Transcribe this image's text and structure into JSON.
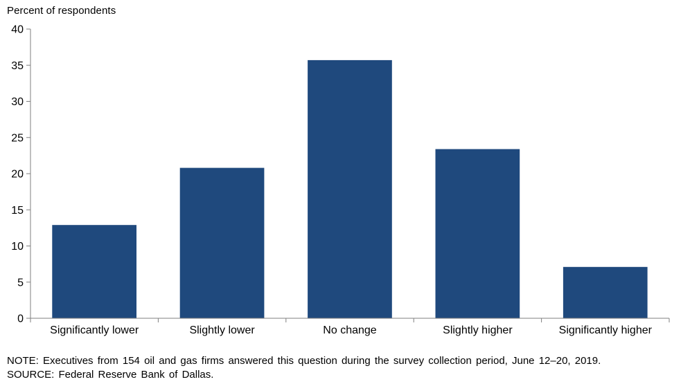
{
  "chart_data": {
    "type": "bar",
    "ylabel": "Percent of respondents",
    "xlabel": "",
    "categories": [
      "Significantly lower",
      "Slightly lower",
      "No change",
      "Slightly higher",
      "Significantly higher"
    ],
    "values": [
      12.9,
      20.8,
      35.7,
      23.4,
      7.1
    ],
    "ylim": [
      0,
      40
    ],
    "yticks": [
      0,
      5,
      10,
      15,
      20,
      25,
      30,
      35,
      40
    ],
    "grid": false,
    "legend": "none"
  },
  "notes": {
    "note": "NOTE: Executives from 154 oil and gas firms answered this question during the survey collection period, June 12–20, 2019.",
    "source": "SOURCE: Federal Reserve Bank of Dallas."
  },
  "colors": {
    "bar": "#1f497d",
    "axis": "#7f7f7f"
  }
}
